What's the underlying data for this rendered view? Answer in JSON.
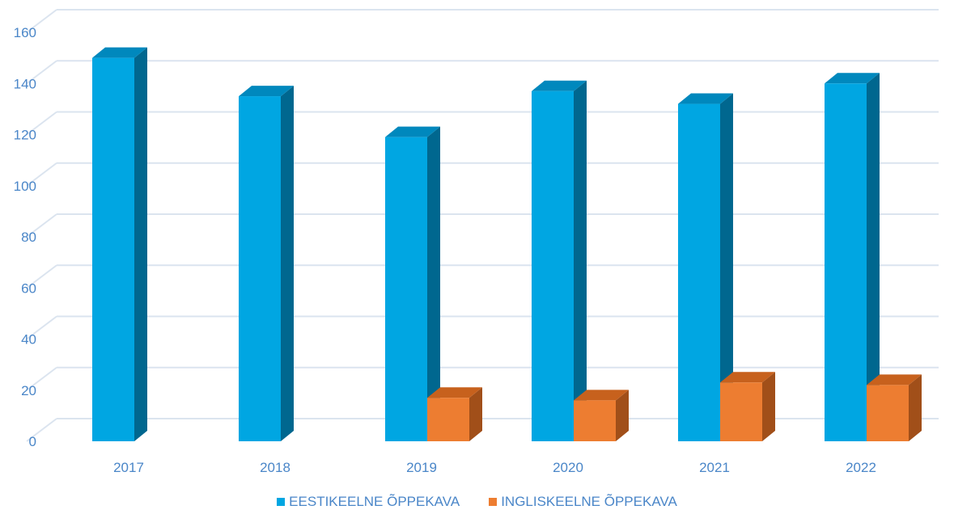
{
  "chart_data": {
    "type": "bar",
    "categories": [
      "2017",
      "2018",
      "2019",
      "2020",
      "2021",
      "2022"
    ],
    "series": [
      {
        "name": "EESTIKEELNE ÕPPEKAVA",
        "values": [
          150,
          135,
          119,
          137,
          132,
          140
        ],
        "color": "#00a6e2",
        "side_color": "#00678f",
        "top_color": "#0088bd"
      },
      {
        "name": "INGLISKEELNE ÕPPEKAVA",
        "values": [
          null,
          null,
          17,
          16,
          23,
          22
        ],
        "color": "#ed7d31",
        "side_color": "#a14f19",
        "top_color": "#c7611d"
      }
    ],
    "yticks": [
      0,
      20,
      40,
      60,
      80,
      100,
      120,
      140,
      160
    ],
    "ylim": [
      0,
      170
    ],
    "grid": true,
    "legend_position": "bottom",
    "title": "",
    "xlabel": "",
    "ylabel": ""
  }
}
